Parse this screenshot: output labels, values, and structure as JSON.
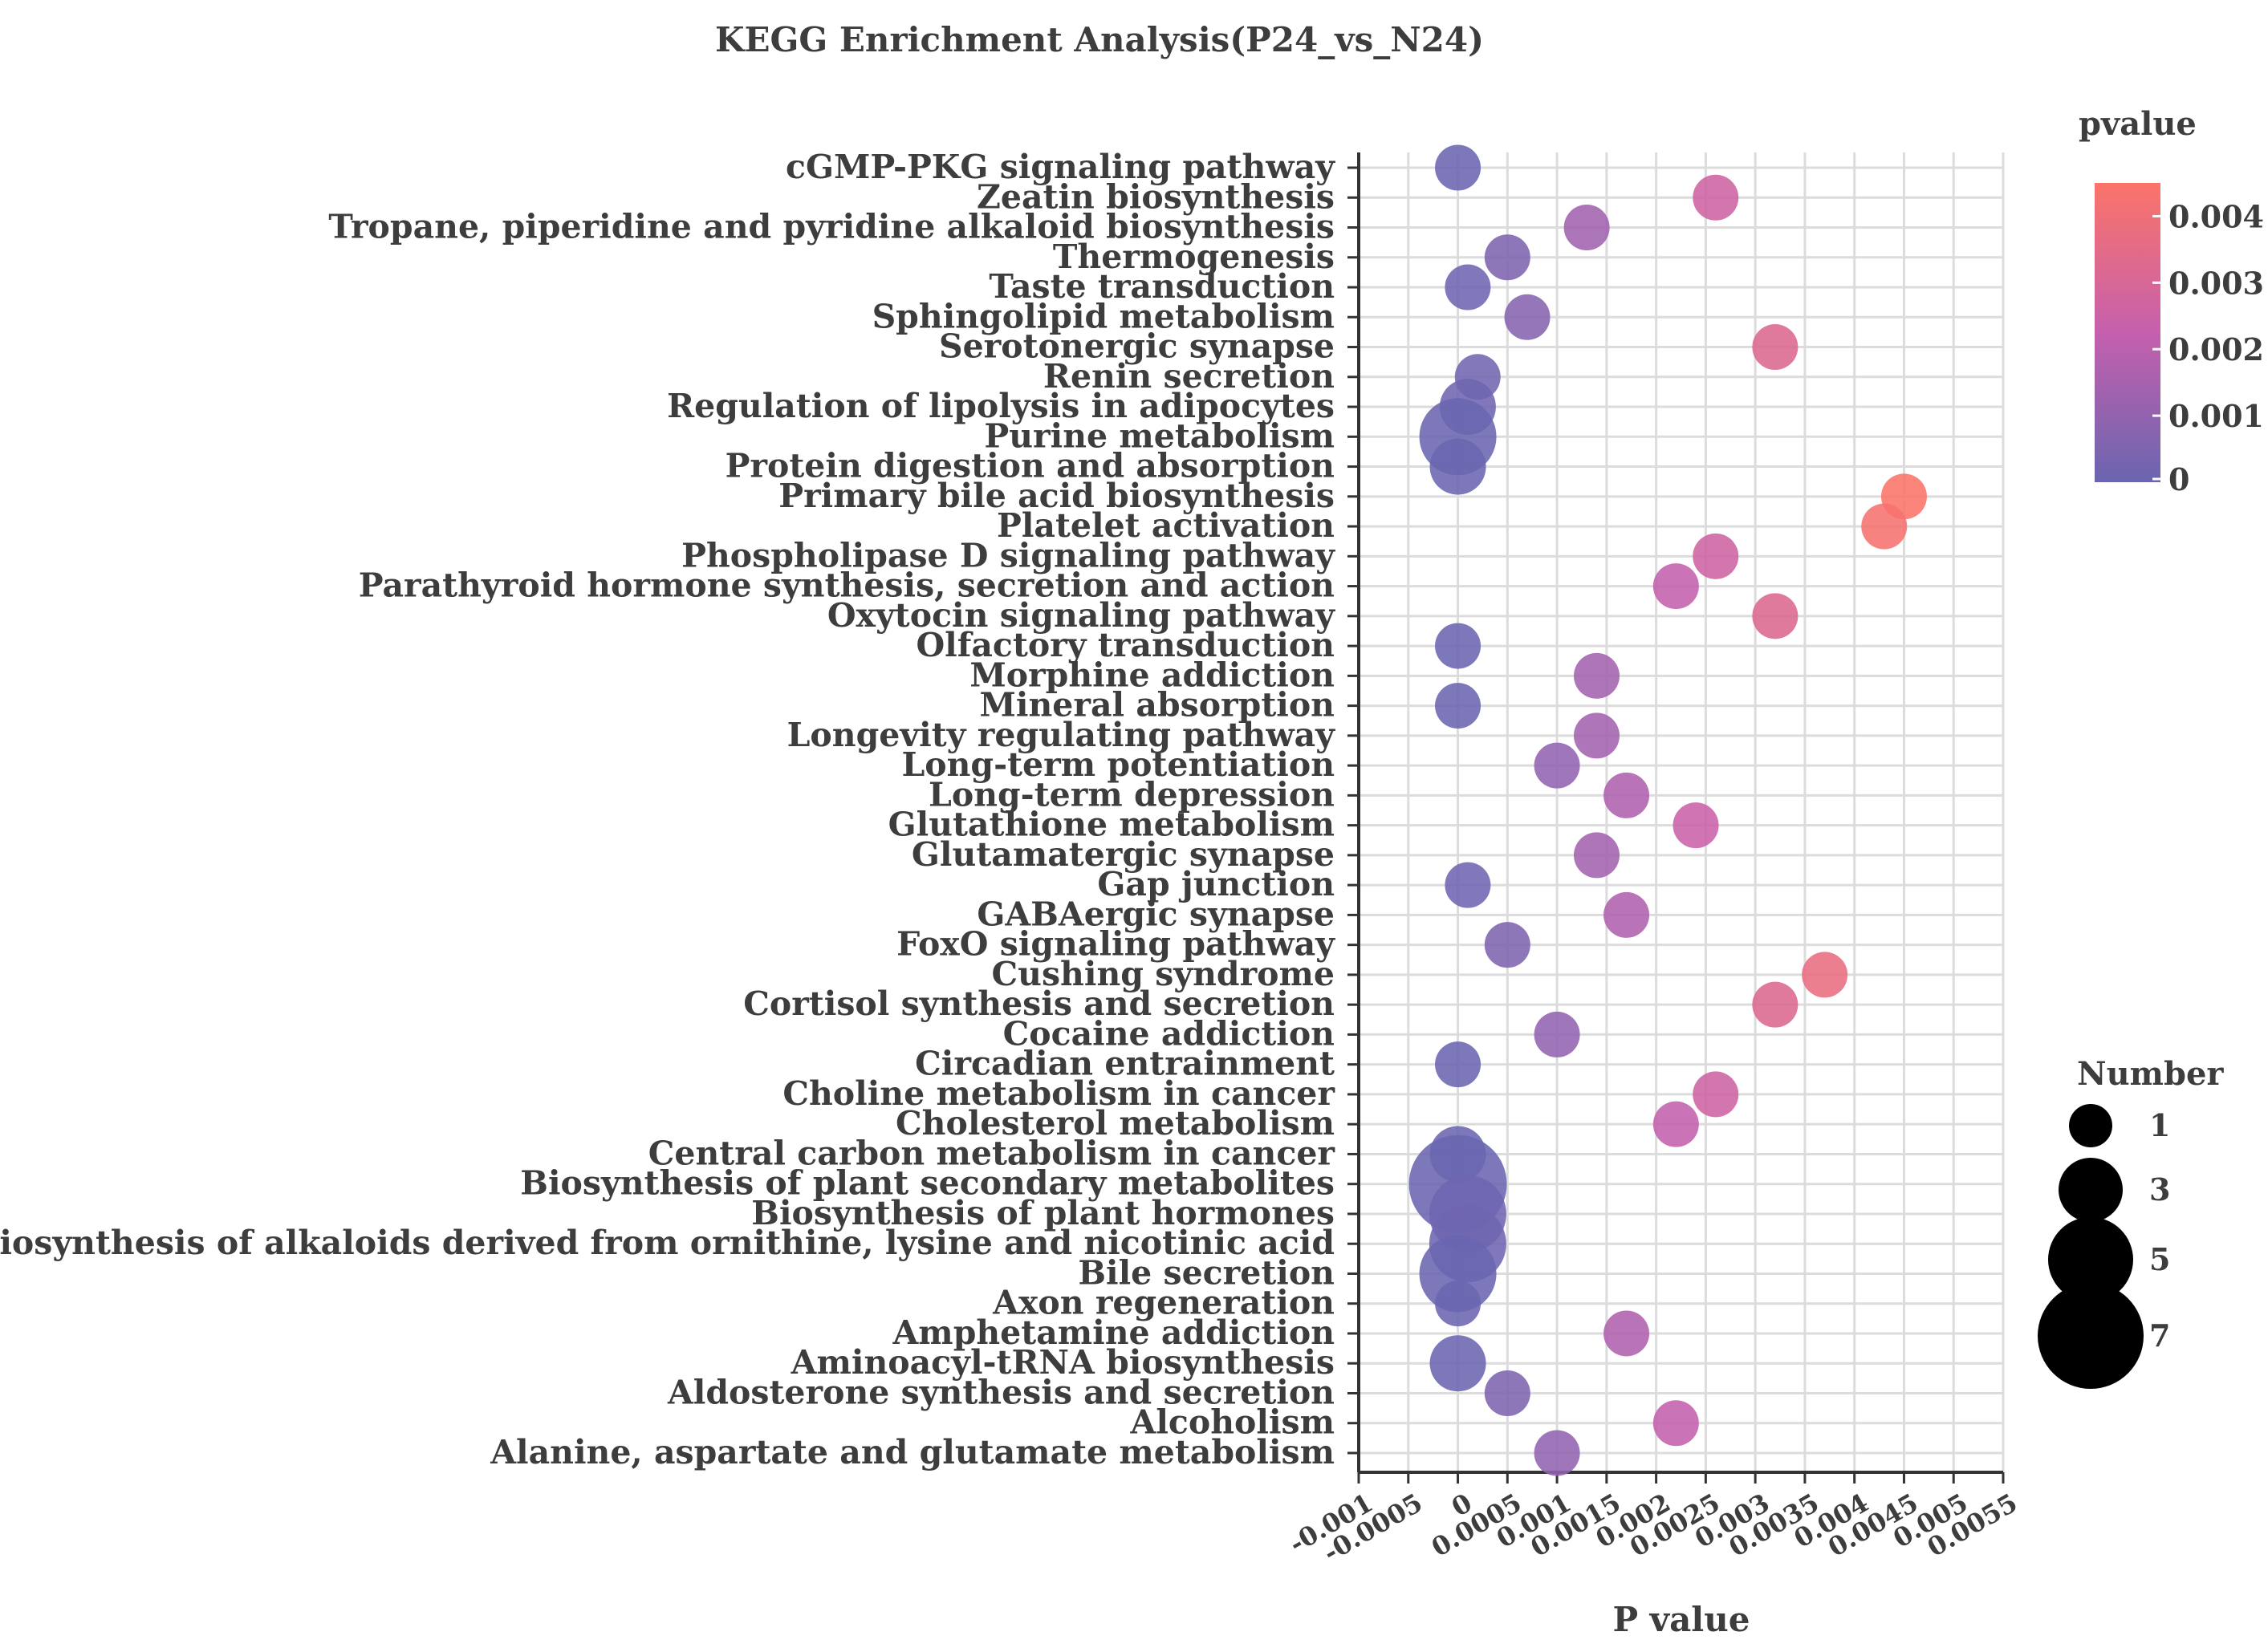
{
  "chart_data": {
    "type": "scatter",
    "title": "KEGG Enrichment Analysis(P24_vs_N24)",
    "xlabel": "P value",
    "ylabel": "",
    "xlim": [
      -0.001,
      0.0055
    ],
    "x_ticks": [
      -0.001,
      -0.0005,
      0,
      0.0005,
      0.001,
      0.0015,
      0.002,
      0.0025,
      0.003,
      0.0035,
      0.004,
      0.0045,
      0.005,
      0.0055
    ],
    "x_tick_labels": [
      "-0.001",
      "-0.0005",
      "0",
      "0.0005",
      "0.001",
      "0.0015",
      "0.002",
      "0.0025",
      "0.003",
      "0.0035",
      "0.004",
      "0.0045",
      "0.005",
      "0.0055"
    ],
    "grid": true,
    "color_legend": {
      "title": "pvalue",
      "min": 0,
      "max": 0.0045,
      "low_color": "#6a65b0",
      "mid_color": "#c560ad",
      "high_color": "#fb7469",
      "ticks": [
        0,
        0.001,
        0.002,
        0.003,
        0.004
      ],
      "tick_labels": [
        "0",
        "0.001",
        "0.002",
        "0.003",
        "0.004"
      ]
    },
    "size_legend": {
      "title": "Number",
      "values": [
        1,
        3,
        5,
        7
      ],
      "labels": [
        "1",
        "3",
        "5",
        "7"
      ]
    },
    "pathways": [
      {
        "name": "cGMP-PKG signaling pathway",
        "pvalue": 0.0,
        "number": 2
      },
      {
        "name": "Zeatin biosynthesis",
        "pvalue": 0.0026,
        "number": 2
      },
      {
        "name": "Tropane, piperidine and pyridine alkaloid biosynthesis",
        "pvalue": 0.0013,
        "number": 2
      },
      {
        "name": "Thermogenesis",
        "pvalue": 0.0005,
        "number": 2
      },
      {
        "name": "Taste transduction",
        "pvalue": 0.0001,
        "number": 2
      },
      {
        "name": "Sphingolipid metabolism",
        "pvalue": 0.0007,
        "number": 2
      },
      {
        "name": "Serotonergic synapse",
        "pvalue": 0.0032,
        "number": 2
      },
      {
        "name": "Renin secretion",
        "pvalue": 0.0002,
        "number": 2
      },
      {
        "name": "Regulation of lipolysis in adipocytes",
        "pvalue": 0.0001,
        "number": 3
      },
      {
        "name": "Purine metabolism",
        "pvalue": 0.0,
        "number": 5
      },
      {
        "name": "Protein digestion and absorption",
        "pvalue": 0.0,
        "number": 3
      },
      {
        "name": "Primary bile acid biosynthesis",
        "pvalue": 0.0045,
        "number": 2
      },
      {
        "name": "Platelet activation",
        "pvalue": 0.0043,
        "number": 2
      },
      {
        "name": "Phospholipase D signaling pathway",
        "pvalue": 0.0026,
        "number": 2
      },
      {
        "name": "Parathyroid hormone synthesis, secretion and action",
        "pvalue": 0.0022,
        "number": 2
      },
      {
        "name": "Oxytocin signaling pathway",
        "pvalue": 0.0032,
        "number": 2
      },
      {
        "name": "Olfactory transduction",
        "pvalue": 0.0,
        "number": 2
      },
      {
        "name": "Morphine addiction",
        "pvalue": 0.0014,
        "number": 2
      },
      {
        "name": "Mineral absorption",
        "pvalue": 0.0,
        "number": 2
      },
      {
        "name": "Longevity regulating pathway",
        "pvalue": 0.0014,
        "number": 2
      },
      {
        "name": "Long-term potentiation",
        "pvalue": 0.001,
        "number": 2
      },
      {
        "name": "Long-term depression",
        "pvalue": 0.0017,
        "number": 2
      },
      {
        "name": "Glutathione metabolism",
        "pvalue": 0.0024,
        "number": 2
      },
      {
        "name": "Glutamatergic synapse",
        "pvalue": 0.0014,
        "number": 2
      },
      {
        "name": "Gap junction",
        "pvalue": 0.0001,
        "number": 2
      },
      {
        "name": "GABAergic synapse",
        "pvalue": 0.0017,
        "number": 2
      },
      {
        "name": "FoxO signaling pathway",
        "pvalue": 0.0005,
        "number": 2
      },
      {
        "name": "Cushing syndrome",
        "pvalue": 0.0037,
        "number": 2
      },
      {
        "name": "Cortisol synthesis and secretion",
        "pvalue": 0.0032,
        "number": 2
      },
      {
        "name": "Cocaine addiction",
        "pvalue": 0.001,
        "number": 2
      },
      {
        "name": "Circadian entrainment",
        "pvalue": 0.0,
        "number": 2
      },
      {
        "name": "Choline metabolism in cancer",
        "pvalue": 0.0026,
        "number": 2
      },
      {
        "name": "Cholesterol metabolism",
        "pvalue": 0.0022,
        "number": 2
      },
      {
        "name": "Central carbon metabolism in cancer",
        "pvalue": 0.0,
        "number": 3
      },
      {
        "name": "Biosynthesis of plant secondary metabolites",
        "pvalue": 0.0,
        "number": 7
      },
      {
        "name": "Biosynthesis of plant hormones",
        "pvalue": 0.0001,
        "number": 5
      },
      {
        "name": "Biosynthesis of alkaloids derived from ornithine, lysine and nicotinic acid",
        "pvalue": 0.0001,
        "number": 5
      },
      {
        "name": "Bile secretion",
        "pvalue": 0.0,
        "number": 5
      },
      {
        "name": "Axon regeneration",
        "pvalue": 0.0,
        "number": 2
      },
      {
        "name": "Amphetamine addiction",
        "pvalue": 0.0017,
        "number": 2
      },
      {
        "name": "Aminoacyl-tRNA biosynthesis",
        "pvalue": 0.0,
        "number": 3
      },
      {
        "name": "Aldosterone synthesis and secretion",
        "pvalue": 0.0005,
        "number": 2
      },
      {
        "name": "Alcoholism",
        "pvalue": 0.0022,
        "number": 2
      },
      {
        "name": "Alanine, aspartate and glutamate metabolism",
        "pvalue": 0.001,
        "number": 2
      }
    ]
  }
}
